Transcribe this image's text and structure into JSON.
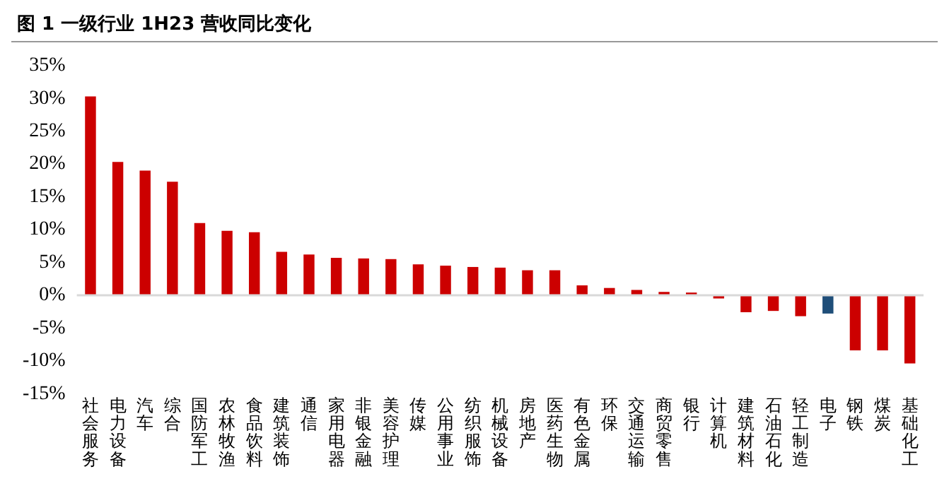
{
  "chart_data": {
    "type": "bar",
    "title": "图 1 一级行业 1H23 营收同比变化",
    "categories": [
      "社会服务",
      "电力设备",
      "汽车",
      "综合",
      "国防军工",
      "农林牧渔",
      "食品饮料",
      "建筑装饰",
      "通信",
      "家用电器",
      "非银金融",
      "美容护理",
      "传媒",
      "公用事业",
      "纺织服饰",
      "机械设备",
      "房地产",
      "医药生物",
      "有色金属",
      "环保",
      "交通运输",
      "商贸零售",
      "银行",
      "计算机",
      "建筑材料",
      "石油石化",
      "轻工制造",
      "电子",
      "钢铁",
      "煤炭",
      "基础化工"
    ],
    "values": [
      30.3,
      20.3,
      19,
      17.3,
      11,
      9.8,
      9.6,
      6.6,
      6.2,
      5.7,
      5.6,
      5.5,
      4.7,
      4.5,
      4.3,
      4.2,
      3.8,
      3.8,
      1.5,
      1.1,
      0.8,
      0.5,
      0.4,
      -0.5,
      -2.6,
      -2.4,
      -3.2,
      -2.8,
      -8.4,
      -8.4,
      -10.4
    ],
    "colors": [
      "#cc0000",
      "#cc0000",
      "#cc0000",
      "#cc0000",
      "#cc0000",
      "#cc0000",
      "#cc0000",
      "#cc0000",
      "#cc0000",
      "#cc0000",
      "#cc0000",
      "#cc0000",
      "#cc0000",
      "#cc0000",
      "#cc0000",
      "#cc0000",
      "#cc0000",
      "#cc0000",
      "#cc0000",
      "#cc0000",
      "#cc0000",
      "#cc0000",
      "#cc0000",
      "#cc0000",
      "#cc0000",
      "#cc0000",
      "#cc0000",
      "#1f4e79",
      "#cc0000",
      "#cc0000",
      "#cc0000"
    ],
    "ylim": [
      -15,
      35
    ],
    "yticks": [
      {
        "value": -15,
        "label": "-15%"
      },
      {
        "value": -10,
        "label": "-10%"
      },
      {
        "value": -5,
        "label": "-5%"
      },
      {
        "value": 0,
        "label": "0%"
      },
      {
        "value": 5,
        "label": "5%"
      },
      {
        "value": 10,
        "label": "10%"
      },
      {
        "value": 15,
        "label": "15%"
      },
      {
        "value": 20,
        "label": "20%"
      },
      {
        "value": 25,
        "label": "25%"
      },
      {
        "value": 30,
        "label": "30%"
      },
      {
        "value": 35,
        "label": "35%"
      }
    ],
    "ref_lines": [
      {
        "axis": "y",
        "value": 0,
        "color": "#d9d9d9"
      }
    ],
    "grid": false,
    "legend": false
  }
}
